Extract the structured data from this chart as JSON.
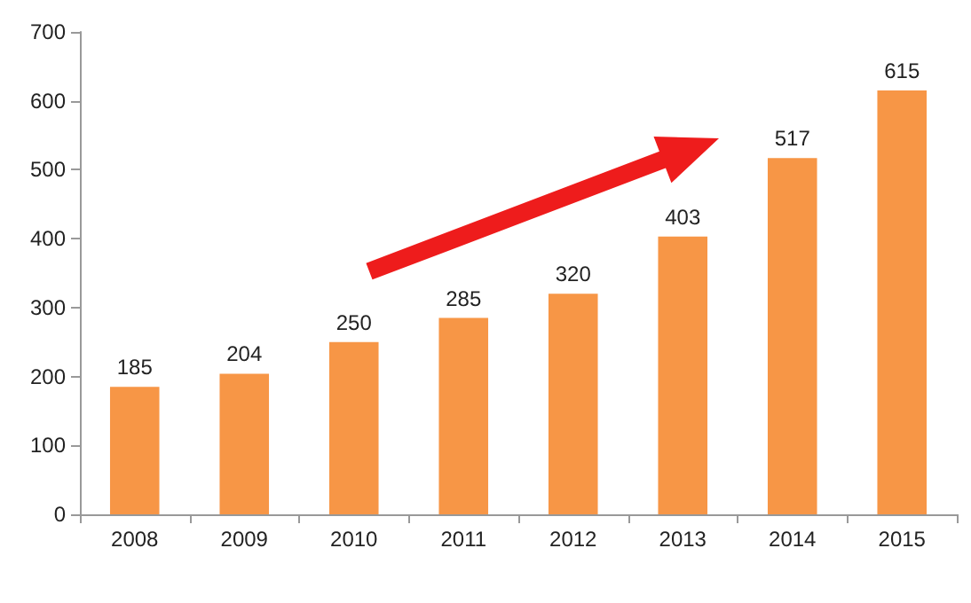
{
  "chart_data": {
    "type": "bar",
    "categories": [
      "2008",
      "2009",
      "2010",
      "2011",
      "2012",
      "2013",
      "2014",
      "2015"
    ],
    "values": [
      185,
      204,
      250,
      285,
      320,
      403,
      517,
      615
    ],
    "color": "#f79646",
    "ylim": [
      0,
      700
    ],
    "yticks": [
      0,
      100,
      200,
      300,
      400,
      500,
      600,
      700
    ],
    "grid": false,
    "data_labels": true
  }
}
